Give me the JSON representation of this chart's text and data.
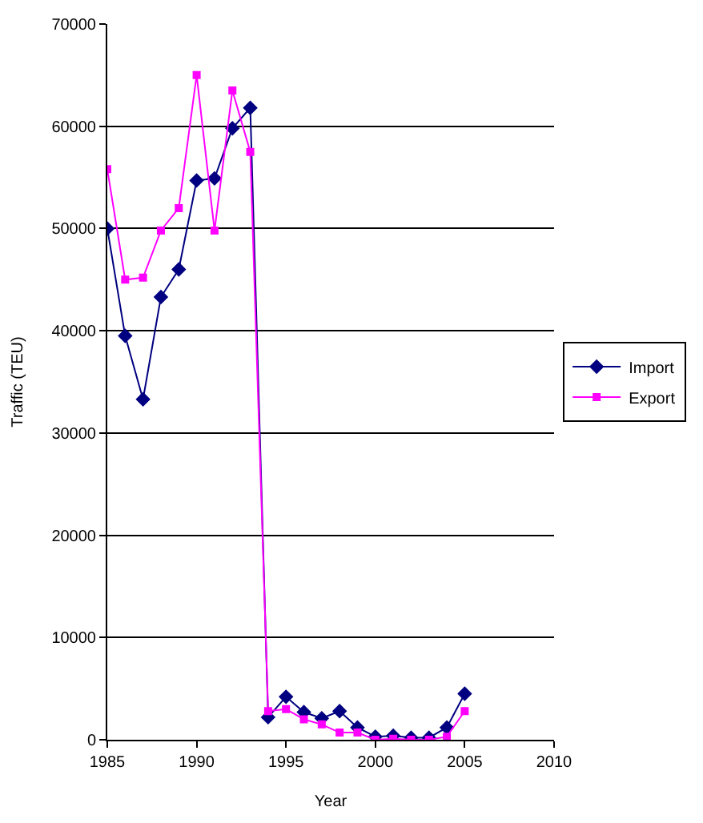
{
  "chart_data": {
    "type": "line",
    "xlabel": "Year",
    "ylabel": "Traffic (TEU)",
    "x": [
      1985,
      1986,
      1987,
      1988,
      1989,
      1990,
      1991,
      1992,
      1993,
      1994,
      1995,
      1996,
      1997,
      1998,
      1999,
      2000,
      2001,
      2002,
      2003,
      2004,
      2005
    ],
    "series": [
      {
        "name": "Import",
        "color": "#000080",
        "marker": "diamond",
        "values": [
          50000,
          39500,
          33300,
          43300,
          46000,
          54700,
          54900,
          59800,
          61800,
          2200,
          4200,
          2700,
          2100,
          2800,
          1200,
          300,
          400,
          200,
          200,
          1200,
          4500
        ]
      },
      {
        "name": "Export",
        "color": "#ff00ff",
        "marker": "square",
        "values": [
          55800,
          45000,
          45200,
          49800,
          52000,
          65000,
          49800,
          63500,
          57500,
          2800,
          3000,
          2000,
          1500,
          700,
          700,
          0,
          100,
          0,
          0,
          300,
          2800
        ]
      }
    ],
    "xlim": [
      1985,
      2010
    ],
    "xticks": [
      1985,
      1990,
      1995,
      2000,
      2005,
      2010
    ],
    "ylim": [
      0,
      70000
    ],
    "yticks": [
      0,
      10000,
      20000,
      30000,
      40000,
      50000,
      60000,
      70000
    ],
    "grid": "y",
    "legend": "right"
  }
}
